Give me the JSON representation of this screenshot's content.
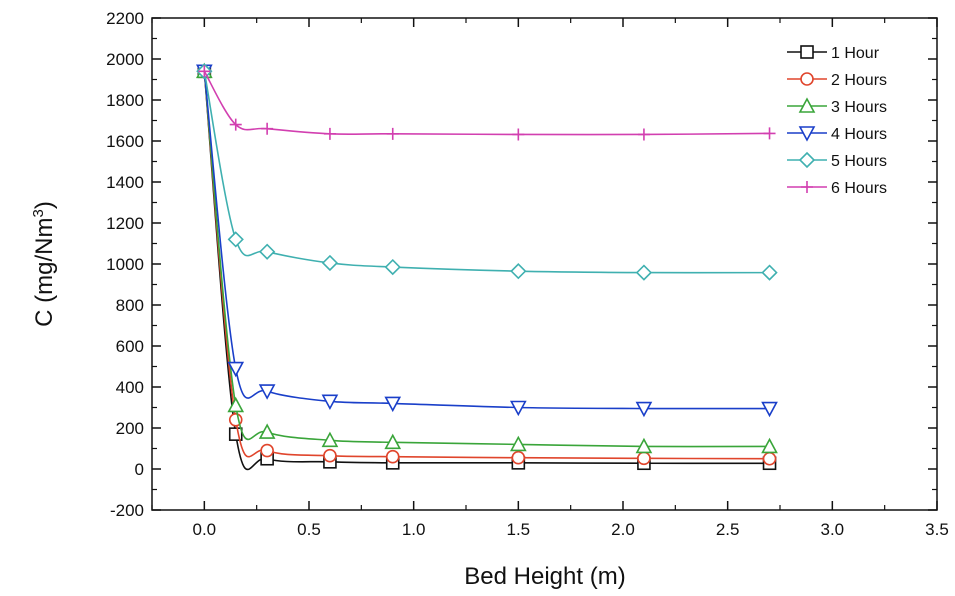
{
  "chart_data": {
    "type": "line",
    "title": "",
    "xlabel": "Bed Height (m)",
    "ylabel_main": "C (mg/Nm",
    "ylabel_sup": "3",
    "ylabel_close": ")",
    "xlim": [
      -0.25,
      3.5
    ],
    "ylim": [
      -200,
      2200
    ],
    "xticks": [
      0.0,
      0.5,
      1.0,
      1.5,
      2.0,
      2.5,
      3.0,
      3.5
    ],
    "xtick_labels": [
      "0.0",
      "0.5",
      "1.0",
      "1.5",
      "2.0",
      "2.5",
      "3.0",
      "3.5"
    ],
    "yticks": [
      -200,
      0,
      200,
      400,
      600,
      800,
      1000,
      1200,
      1400,
      1600,
      1800,
      2000,
      2200
    ],
    "ytick_labels": [
      "-200",
      "0",
      "200",
      "400",
      "600",
      "800",
      "1000",
      "1200",
      "1400",
      "1600",
      "1800",
      "2000",
      "2200"
    ],
    "grid": false,
    "legend_position": "top-right",
    "x": [
      0.0,
      0.15,
      0.3,
      0.6,
      0.9,
      1.5,
      2.1,
      2.7
    ],
    "series": [
      {
        "name": "1 Hour",
        "color": "#111111",
        "marker": "square",
        "values": [
          1940,
          170,
          50,
          35,
          30,
          30,
          28,
          28
        ]
      },
      {
        "name": "2 Hours",
        "color": "#e0452c",
        "marker": "circle",
        "values": [
          1940,
          240,
          90,
          65,
          60,
          55,
          52,
          50
        ]
      },
      {
        "name": "3 Hours",
        "color": "#3aa53a",
        "marker": "triangle-up",
        "values": [
          1940,
          310,
          180,
          140,
          130,
          120,
          110,
          110
        ]
      },
      {
        "name": "4 Hours",
        "color": "#1a3fc9",
        "marker": "triangle-down",
        "values": [
          1940,
          490,
          380,
          330,
          320,
          300,
          295,
          295
        ]
      },
      {
        "name": "5 Hours",
        "color": "#3fb0b0",
        "marker": "diamond",
        "values": [
          1940,
          1120,
          1060,
          1005,
          985,
          965,
          958,
          958
        ]
      },
      {
        "name": "6 Hours",
        "color": "#d23fb0",
        "marker": "plus",
        "values": [
          1940,
          1680,
          1660,
          1635,
          1635,
          1632,
          1632,
          1637
        ]
      }
    ]
  }
}
